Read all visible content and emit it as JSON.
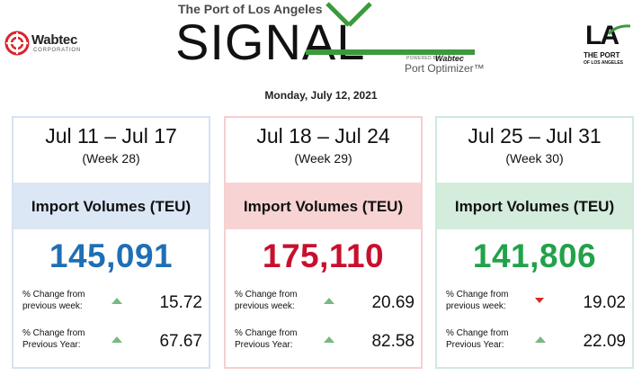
{
  "header": {
    "wabtec_logo": {
      "name": "Wabtec",
      "subtitle": "CORPORATION"
    },
    "signal_logo": {
      "port_title": "The Port of Los Angeles",
      "word": "SIGNAL",
      "powered_by": "POWERED BY",
      "powered_brand": "Wabtec",
      "product": "Port Optimizer™",
      "accent_color": "#3c9a3c"
    },
    "la_logo": {
      "letters": "LA",
      "line1": "THE PORT",
      "line2": "OF LOS ANGELES"
    },
    "date": "Monday, July 12, 2021"
  },
  "cards": [
    {
      "range": "Jul 11 – Jul 17",
      "week": "(Week 28)",
      "band_label": "Import Volumes (TEU)",
      "volume": "145,091",
      "theme_color": "#1f6fb5",
      "metrics": [
        {
          "label": "% Change from previous week:",
          "direction": "up",
          "value": "15.72"
        },
        {
          "label": "% Change from Previous Year:",
          "direction": "up",
          "value": "67.67"
        }
      ]
    },
    {
      "range": "Jul 18 – Jul 24",
      "week": "(Week 29)",
      "band_label": "Import Volumes (TEU)",
      "volume": "175,110",
      "theme_color": "#c8102e",
      "metrics": [
        {
          "label": "% Change from previous week:",
          "direction": "up",
          "value": "20.69"
        },
        {
          "label": "% Change from Previous Year:",
          "direction": "up",
          "value": "82.58"
        }
      ]
    },
    {
      "range": "Jul 25 – Jul 31",
      "week": "(Week 30)",
      "band_label": "Import Volumes (TEU)",
      "volume": "141,806",
      "theme_color": "#22a24a",
      "metrics": [
        {
          "label": "% Change from previous week:",
          "direction": "down",
          "value": "19.02"
        },
        {
          "label": "% Change from Previous Year:",
          "direction": "up",
          "value": "22.09"
        }
      ]
    }
  ]
}
